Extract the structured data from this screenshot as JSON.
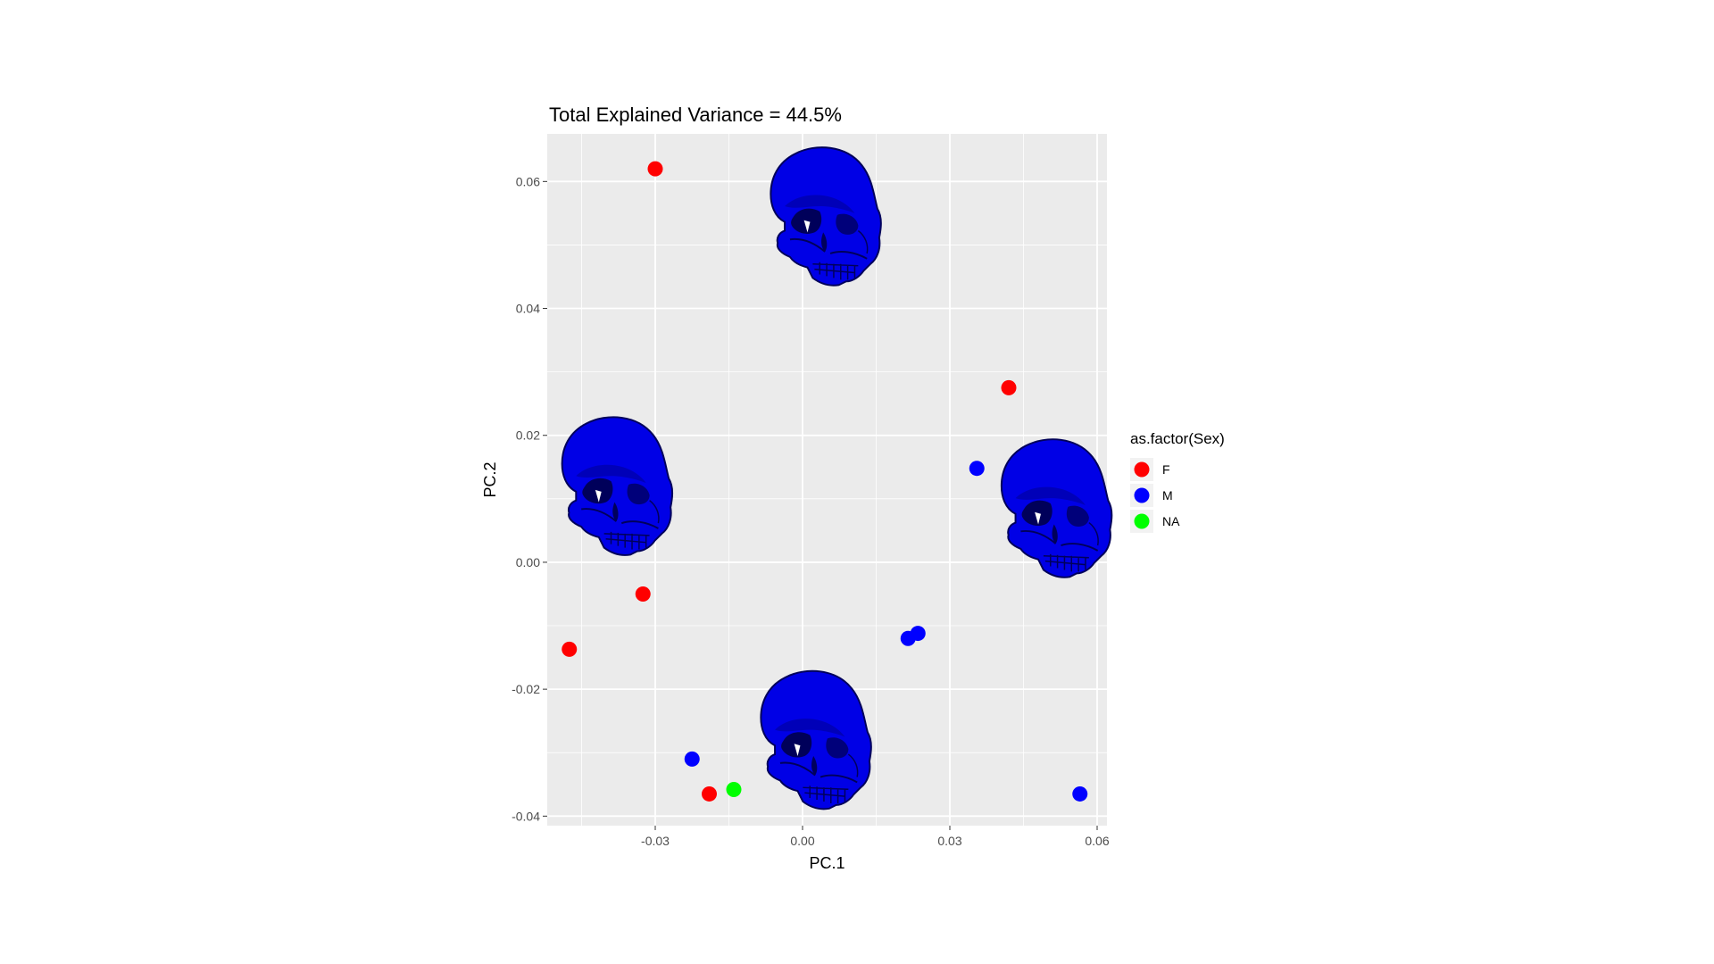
{
  "colors": {
    "panel_bg": "#ebebeb",
    "grid_major": "#ffffff",
    "F": "#ff0000",
    "M": "#0000ff",
    "NA": "#00ff00",
    "skull_fill": "#0000e6",
    "skull_dark": "#00005a"
  },
  "chart_data": {
    "type": "scatter",
    "title": "Total Explained Variance = 44.5%",
    "xlabel": "PC.1",
    "ylabel": "PC.2",
    "xlim": [
      -0.052,
      0.062
    ],
    "ylim": [
      -0.0415,
      0.0675
    ],
    "x_ticks": [
      -0.03,
      0.0,
      0.03,
      0.06
    ],
    "x_tick_labels": [
      "-0.03",
      "0.00",
      "0.03",
      "0.06"
    ],
    "y_ticks": [
      -0.04,
      -0.02,
      0.0,
      0.02,
      0.04,
      0.06
    ],
    "y_tick_labels": [
      "-0.04",
      "-0.02",
      "0.00",
      "0.02",
      "0.04",
      "0.06"
    ],
    "grid": true,
    "legend": {
      "title": "as.factor(Sex)",
      "placement": "right",
      "entries": [
        {
          "key": "F",
          "label": "F"
        },
        {
          "key": "M",
          "label": "M"
        },
        {
          "key": "NA",
          "label": "NA"
        }
      ]
    },
    "series": [
      {
        "name": "F",
        "points": [
          [
            -0.03,
            0.062
          ],
          [
            -0.0325,
            -0.005
          ],
          [
            -0.0475,
            -0.0137
          ],
          [
            -0.019,
            -0.0365
          ],
          [
            0.042,
            0.0275
          ]
        ]
      },
      {
        "name": "M",
        "points": [
          [
            -0.0225,
            -0.031
          ],
          [
            0.0215,
            -0.012
          ],
          [
            0.0235,
            -0.0112
          ],
          [
            0.0355,
            0.0148
          ],
          [
            0.0565,
            -0.0365
          ]
        ]
      },
      {
        "name": "NA",
        "points": [
          [
            -0.014,
            -0.0358
          ]
        ]
      }
    ],
    "shape_images": [
      {
        "x": 0.0035,
        "y": 0.055,
        "variant": "top"
      },
      {
        "x": -0.039,
        "y": 0.0125,
        "variant": "left"
      },
      {
        "x": 0.0505,
        "y": 0.009,
        "variant": "right"
      },
      {
        "x": 0.0015,
        "y": -0.0275,
        "variant": "bottom"
      }
    ]
  }
}
